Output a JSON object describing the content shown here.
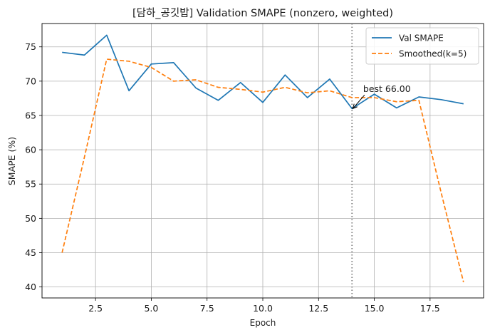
{
  "chart_data": {
    "type": "line",
    "title": "[담하_공깃밥] Validation SMAPE (nonzero, weighted)",
    "xlabel": "Epoch",
    "ylabel": "SMAPE (%)",
    "xlim": [
      0.1,
      19.9
    ],
    "ylim": [
      38.4,
      78.4
    ],
    "xticks": [
      2.5,
      5.0,
      7.5,
      10.0,
      12.5,
      15.0,
      17.5
    ],
    "xtick_labels": [
      "2.5",
      "5.0",
      "7.5",
      "10.0",
      "12.5",
      "15.0",
      "17.5"
    ],
    "yticks": [
      40,
      45,
      50,
      55,
      60,
      65,
      70,
      75
    ],
    "ytick_labels": [
      "40",
      "45",
      "50",
      "55",
      "60",
      "65",
      "70",
      "75"
    ],
    "grid": true,
    "legend_position": "top-right",
    "series": [
      {
        "name": "Val SMAPE",
        "color": "#1f77b4",
        "style": "solid",
        "x": [
          1,
          2,
          3,
          4,
          5,
          6,
          7,
          8,
          9,
          10,
          11,
          12,
          13,
          14,
          15,
          16,
          17,
          18,
          19
        ],
        "y": [
          74.2,
          73.8,
          76.7,
          68.6,
          72.5,
          72.7,
          69.0,
          67.2,
          69.8,
          66.9,
          70.9,
          67.6,
          70.3,
          66.0,
          68.1,
          66.1,
          67.7,
          67.3,
          66.7
        ]
      },
      {
        "name": "Smoothed(k=5)",
        "color": "#ff7f0e",
        "style": "dashed",
        "x": [
          1,
          2,
          3,
          4,
          5,
          6,
          7,
          8,
          9,
          10,
          11,
          12,
          13,
          14,
          15,
          16,
          17,
          18,
          19
        ],
        "y": [
          45.0,
          58.9,
          73.2,
          72.9,
          72.0,
          70.0,
          70.2,
          69.1,
          68.8,
          68.4,
          69.1,
          68.3,
          68.6,
          67.6,
          67.6,
          67.0,
          67.2,
          53.7,
          40.7
        ]
      }
    ],
    "vline": {
      "x": 14,
      "color": "#808080",
      "style": "dotted"
    },
    "annotation": {
      "text": "best 66.00",
      "x": 14,
      "y": 66.0,
      "text_x": 14.5,
      "text_y": 68.2
    }
  }
}
